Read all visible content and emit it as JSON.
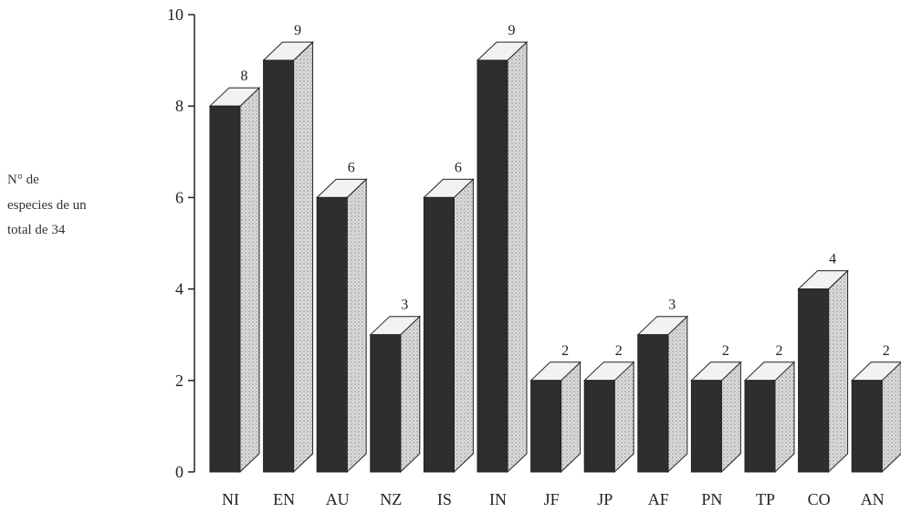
{
  "chart_data": {
    "type": "bar",
    "title": "",
    "xlabel": "",
    "ylabel_lines": [
      "N° de",
      "especies de un",
      "total de 34"
    ],
    "categories": [
      "NI",
      "EN",
      "AU",
      "NZ",
      "IS",
      "IN",
      "JF",
      "JP",
      "AF",
      "PN",
      "TP",
      "CO",
      "AN"
    ],
    "values": [
      8,
      9,
      6,
      3,
      6,
      9,
      2,
      2,
      3,
      2,
      2,
      4,
      2
    ],
    "ylim": [
      0,
      10
    ],
    "yticks": [
      0,
      2,
      4,
      6,
      8,
      10
    ],
    "grid": false,
    "legend": "none",
    "style": "3d-bar",
    "colors": {
      "front": "#2e2e2e",
      "side": "#d2d2d2",
      "top": "#f2f2f2",
      "stroke": "#222222"
    }
  }
}
